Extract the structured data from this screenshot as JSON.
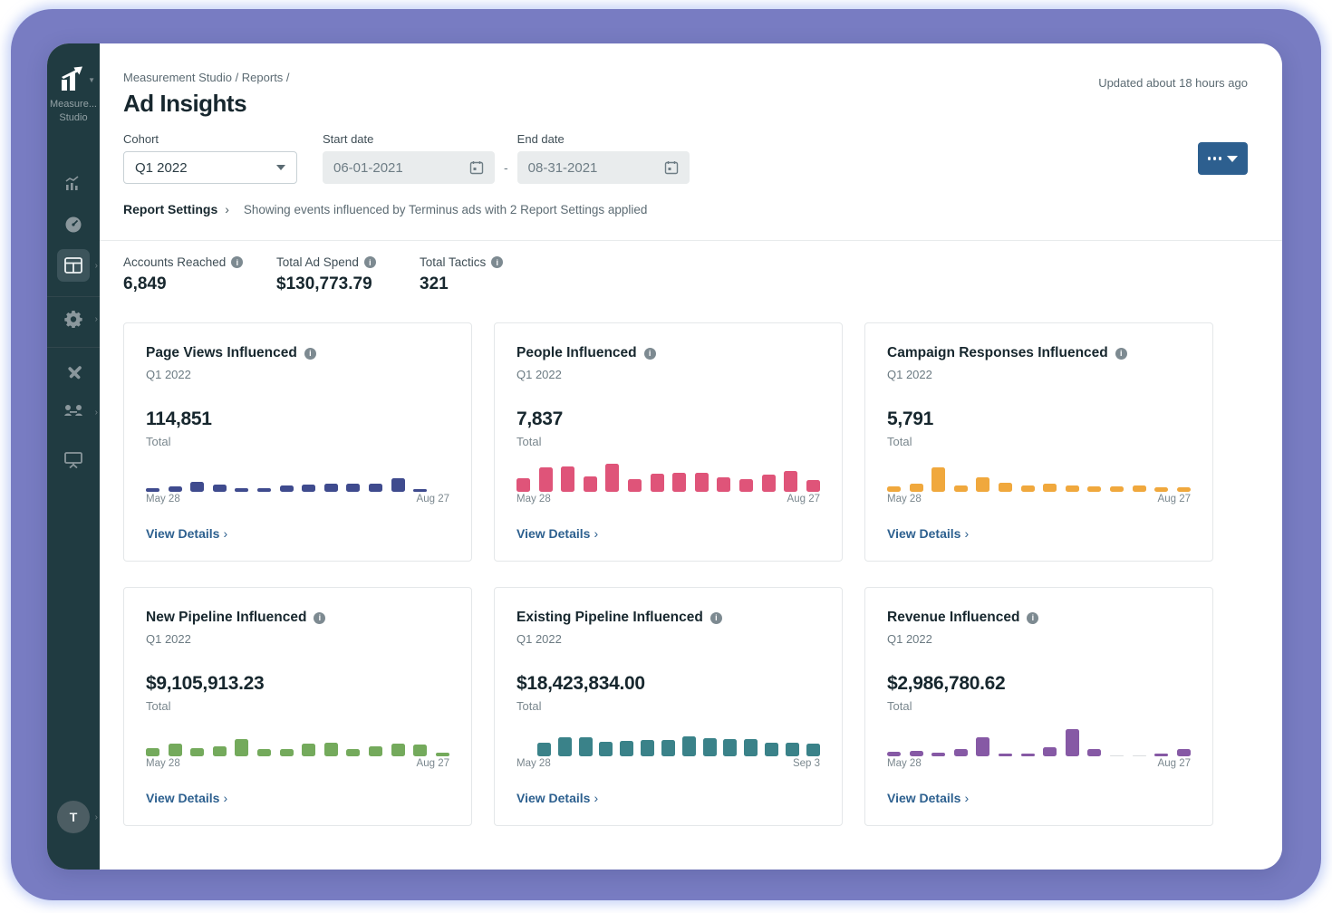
{
  "header": {
    "breadcrumb": "Measurement Studio / Reports /",
    "title": "Ad Insights",
    "updated": "Updated about 18 hours ago"
  },
  "sidebar": {
    "logo_line1": "Measure...",
    "logo_line2": "Studio",
    "avatar_letter": "T",
    "icons": [
      "analytics-icon",
      "dashboard-icon",
      "table-icon",
      "settings-icon",
      "tools-icon",
      "people-icon",
      "presentation-icon"
    ]
  },
  "filters": {
    "cohort_label": "Cohort",
    "cohort_value": "Q1 2022",
    "start_label": "Start date",
    "start_value": "06-01-2021",
    "end_label": "End date",
    "end_value": "08-31-2021",
    "range_separator": "-"
  },
  "report_settings": {
    "label": "Report Settings",
    "chevron": "›",
    "description": "Showing events influenced by Terminus ads with 2 Report Settings applied"
  },
  "stats": [
    {
      "label": "Accounts Reached",
      "value": "6,849"
    },
    {
      "label": "Total Ad Spend",
      "value": "$130,773.79"
    },
    {
      "label": "Total Tactics",
      "value": "321"
    }
  ],
  "cards_common": {
    "subtitle": "Q1 2022",
    "total_label": "Total",
    "view_details": "View Details",
    "chevron": "›"
  },
  "chart_data": [
    {
      "type": "bar",
      "title": "Page Views Influenced",
      "total": "114,851",
      "x_start": "May 28",
      "x_end": "Aug 27",
      "color": "#3f4b8e",
      "values": [
        4,
        6,
        11,
        8,
        4,
        4,
        7,
        8,
        9,
        9,
        9,
        15,
        3,
        0
      ]
    },
    {
      "type": "bar",
      "title": "People Influenced",
      "total": "7,837",
      "x_start": "May 28",
      "x_end": "Aug 27",
      "color": "#df5479",
      "values": [
        15,
        27,
        28,
        17,
        31,
        14,
        20,
        21,
        21,
        16,
        14,
        19,
        23,
        13
      ]
    },
    {
      "type": "bar",
      "title": "Campaign Responses Influenced",
      "total": "5,791",
      "x_start": "May 28",
      "x_end": "Aug 27",
      "color": "#f0a83d",
      "values": [
        6,
        9,
        27,
        7,
        16,
        10,
        7,
        9,
        7,
        6,
        6,
        7,
        5,
        5
      ]
    },
    {
      "type": "bar",
      "title": "New Pipeline Influenced",
      "total": "$9,105,913.23",
      "x_start": "May 28",
      "x_end": "Aug 27",
      "color": "#74aa5c",
      "values": [
        9,
        14,
        9,
        11,
        19,
        8,
        8,
        14,
        15,
        8,
        11,
        14,
        13,
        4
      ]
    },
    {
      "type": "bar",
      "title": "Existing Pipeline Influenced",
      "total": "$18,423,834.00",
      "x_start": "May 28",
      "x_end": "Sep 3",
      "color": "#3a8289",
      "values": [
        0,
        15,
        21,
        21,
        16,
        17,
        18,
        18,
        22,
        20,
        19,
        19,
        15,
        15,
        14
      ]
    },
    {
      "type": "bar",
      "title": "Revenue Influenced",
      "total": "$2,986,780.62",
      "x_start": "May 28",
      "x_end": "Aug 27",
      "color": "#8659a5",
      "values": [
        5,
        6,
        4,
        8,
        21,
        3,
        3,
        10,
        30,
        8,
        1,
        1,
        3,
        8
      ],
      "muted_indices": [
        10,
        11
      ],
      "muted_color": "#d9dcde"
    }
  ]
}
